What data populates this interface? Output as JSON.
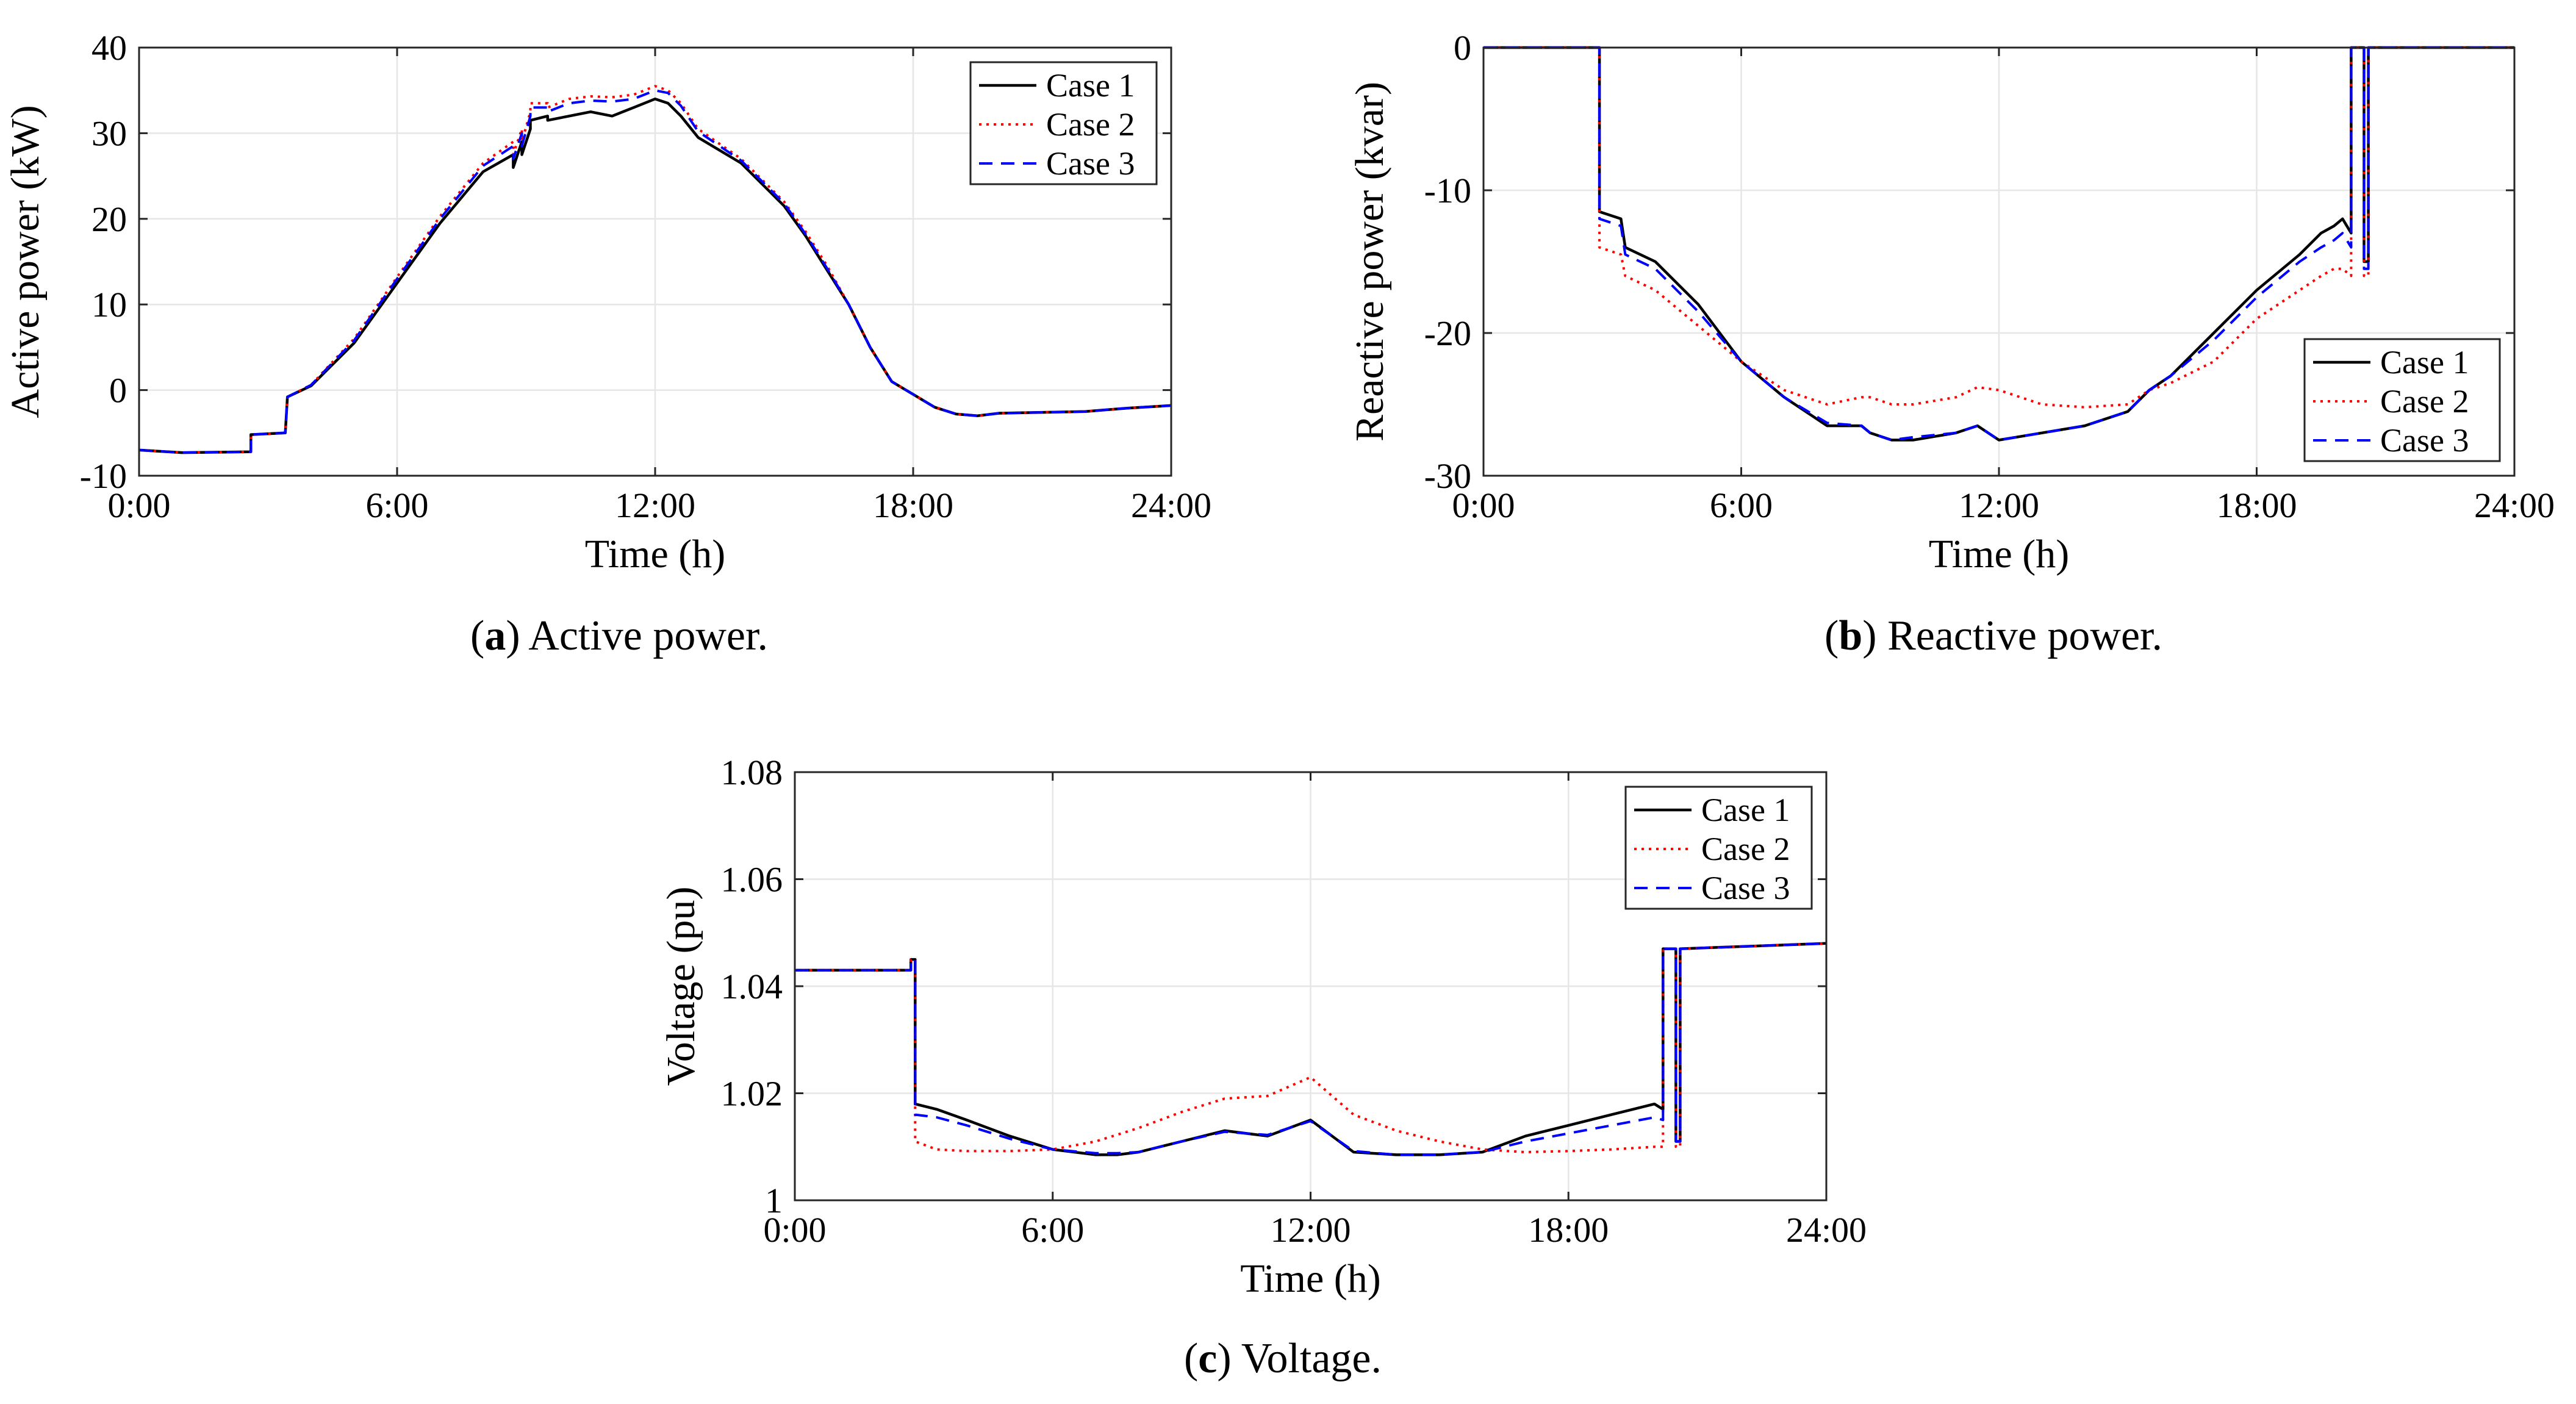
{
  "colors": {
    "case1": "#000000",
    "case2": "#ff0000",
    "case3": "#0000ff",
    "grid": "#e6e6e6",
    "axis": "#262626"
  },
  "chart_data": [
    {
      "id": "a",
      "type": "line",
      "caption_letter": "a",
      "caption_text": " Active power.",
      "xlabel": "Time (h)",
      "ylabel": "Active power (kW)",
      "xlim": [
        0,
        24
      ],
      "ylim": [
        -10,
        40
      ],
      "xticks": [
        0,
        6,
        12,
        18,
        24
      ],
      "xtick_labels": [
        "0:00",
        "6:00",
        "12:00",
        "18:00",
        "24:00"
      ],
      "yticks": [
        -10,
        0,
        10,
        20,
        30,
        40
      ],
      "ytick_labels": [
        "-10",
        "0",
        "10",
        "20",
        "30",
        "40"
      ],
      "legend": [
        "Case 1",
        "Case 2",
        "Case 3"
      ],
      "legend_position": "top-right",
      "grid": true,
      "series": [
        {
          "name": "Case 1",
          "x": [
            0,
            1,
            2.6,
            2.6,
            3.4,
            3.45,
            4,
            5,
            6,
            7,
            8,
            8.7,
            8.7,
            8.9,
            8.9,
            9.1,
            9.1,
            9.5,
            9.5,
            10,
            10.5,
            11,
            11.5,
            12,
            12.3,
            12.6,
            13,
            14,
            15,
            15.5,
            16,
            16.5,
            17,
            17.5,
            18,
            18.5,
            19,
            19.5,
            20,
            21,
            22,
            22.5,
            23,
            24
          ],
          "y": [
            -7,
            -7.3,
            -7.2,
            -5.2,
            -5,
            -0.8,
            0.5,
            5.5,
            12.5,
            19.5,
            25.5,
            27.5,
            26,
            29,
            27.5,
            30.5,
            31.5,
            32,
            31.5,
            32,
            32.5,
            32,
            33,
            34,
            33.5,
            32,
            29.5,
            26.5,
            21.5,
            18,
            14,
            10,
            5,
            1,
            -0.5,
            -2,
            -2.8,
            -3,
            -2.7,
            -2.6,
            -2.5,
            -2.3,
            -2.1,
            -1.8
          ]
        },
        {
          "name": "Case 2",
          "x": [
            0,
            1,
            2.6,
            2.6,
            3.4,
            3.45,
            4,
            5,
            6,
            7,
            8,
            8.7,
            8.7,
            8.9,
            8.9,
            9.1,
            9.1,
            9.5,
            9.5,
            10,
            10.5,
            11,
            11.5,
            12,
            12.3,
            12.6,
            13,
            14,
            15,
            15.5,
            16,
            16.5,
            17,
            17.5,
            18,
            18.5,
            19,
            19.5,
            20,
            21,
            22,
            22.5,
            23,
            24
          ],
          "y": [
            -7,
            -7.3,
            -7.2,
            -5.2,
            -5,
            -0.8,
            0.6,
            6,
            13.2,
            20.3,
            26.5,
            29,
            27.5,
            30.5,
            29,
            32.5,
            33.5,
            33.5,
            33,
            34,
            34.3,
            34.2,
            34.5,
            35.5,
            35,
            33.5,
            30.5,
            27,
            22,
            18.5,
            14.5,
            10,
            5,
            1,
            -0.5,
            -2,
            -2.8,
            -3,
            -2.7,
            -2.6,
            -2.5,
            -2.3,
            -2.1,
            -1.8
          ]
        },
        {
          "name": "Case 3",
          "x": [
            0,
            1,
            2.6,
            2.6,
            3.4,
            3.45,
            4,
            5,
            6,
            7,
            8,
            8.7,
            8.7,
            8.9,
            8.9,
            9.1,
            9.1,
            9.5,
            9.5,
            10,
            10.5,
            11,
            11.5,
            12,
            12.3,
            12.6,
            13,
            14,
            15,
            15.5,
            16,
            16.5,
            17,
            17.5,
            18,
            18.5,
            19,
            19.5,
            20,
            21,
            22,
            22.5,
            23,
            24
          ],
          "y": [
            -7,
            -7.3,
            -7.2,
            -5.2,
            -5,
            -0.8,
            0.6,
            5.8,
            13,
            20,
            26.2,
            28.5,
            27,
            30,
            28.5,
            32,
            33,
            33,
            32.5,
            33.5,
            33.8,
            33.7,
            34,
            35,
            34.7,
            33.2,
            30.2,
            26.8,
            21.8,
            18.2,
            14.2,
            10,
            5,
            1,
            -0.5,
            -2,
            -2.8,
            -3,
            -2.7,
            -2.6,
            -2.5,
            -2.3,
            -2.1,
            -1.8
          ]
        }
      ]
    },
    {
      "id": "b",
      "type": "line",
      "caption_letter": "b",
      "caption_text": " Reactive power.",
      "xlabel": "Time (h)",
      "ylabel": "Reactive power (kvar)",
      "xlim": [
        0,
        24
      ],
      "ylim": [
        -30,
        0
      ],
      "xticks": [
        0,
        6,
        12,
        18,
        24
      ],
      "xtick_labels": [
        "0:00",
        "6:00",
        "12:00",
        "18:00",
        "24:00"
      ],
      "yticks": [
        -30,
        -20,
        -10,
        0
      ],
      "ytick_labels": [
        "-30",
        "-20",
        "-10",
        "0"
      ],
      "legend": [
        "Case 1",
        "Case 2",
        "Case 3"
      ],
      "legend_position": "right",
      "grid": true,
      "series": [
        {
          "name": "Case 1",
          "x": [
            0,
            2.7,
            2.7,
            3.2,
            3.3,
            4,
            5,
            6,
            7,
            8,
            8.8,
            9,
            9.5,
            10,
            11,
            11.5,
            12,
            13,
            14,
            15,
            15.5,
            16,
            17,
            18,
            19,
            19.5,
            19.8,
            20,
            20.2,
            20.2,
            20.5,
            20.5,
            20.6,
            20.6,
            24
          ],
          "y": [
            0,
            0,
            -11.5,
            -12,
            -14,
            -15,
            -18,
            -22,
            -24.5,
            -26.5,
            -26.5,
            -27,
            -27.5,
            -27.5,
            -27,
            -26.5,
            -27.5,
            -27,
            -26.5,
            -25.5,
            -24,
            -23,
            -20,
            -17,
            -14.5,
            -13,
            -12.5,
            -12,
            -13,
            0,
            0,
            -15,
            -15,
            0,
            0
          ]
        },
        {
          "name": "Case 2",
          "x": [
            0,
            2.7,
            2.7,
            3.2,
            3.3,
            4,
            5,
            6,
            7,
            8,
            8.8,
            9,
            9.5,
            10,
            11,
            11.5,
            12,
            13,
            14,
            15,
            15.5,
            16,
            17,
            18,
            19,
            19.5,
            19.8,
            20,
            20.2,
            20.2,
            20.5,
            20.5,
            20.6,
            20.6,
            24
          ],
          "y": [
            0,
            0,
            -14,
            -14.5,
            -16,
            -17,
            -19.5,
            -22,
            -24,
            -25,
            -24.5,
            -24.5,
            -25,
            -25,
            -24.5,
            -23.8,
            -24,
            -25,
            -25.2,
            -25,
            -24,
            -23.5,
            -22,
            -19,
            -17,
            -16,
            -15.5,
            -15.5,
            -16,
            0,
            0,
            -16,
            -16,
            0,
            0
          ]
        },
        {
          "name": "Case 3",
          "x": [
            0,
            2.7,
            2.7,
            3.2,
            3.3,
            4,
            5,
            6,
            7,
            8,
            8.8,
            9,
            9.5,
            10,
            11,
            11.5,
            12,
            13,
            14,
            15,
            15.5,
            16,
            17,
            18,
            19,
            19.5,
            19.8,
            20,
            20.2,
            20.2,
            20.5,
            20.5,
            20.6,
            20.6,
            24
          ],
          "y": [
            0,
            0,
            -12,
            -12.5,
            -14.5,
            -15.5,
            -18.5,
            -22,
            -24.5,
            -26.3,
            -26.5,
            -27,
            -27.5,
            -27.3,
            -27,
            -26.5,
            -27.5,
            -27,
            -26.5,
            -25.5,
            -24,
            -23,
            -20.5,
            -17.5,
            -15,
            -14,
            -13.5,
            -13,
            -14,
            0,
            0,
            -15.5,
            -15.5,
            0,
            0
          ]
        }
      ]
    },
    {
      "id": "c",
      "type": "line",
      "caption_letter": "c",
      "caption_text": " Voltage.",
      "xlabel": "Time (h)",
      "ylabel": "Voltage (pu)",
      "xlim": [
        0,
        24
      ],
      "ylim": [
        1.0,
        1.08
      ],
      "xticks": [
        0,
        6,
        12,
        18,
        24
      ],
      "xtick_labels": [
        "0:00",
        "6:00",
        "12:00",
        "18:00",
        "24:00"
      ],
      "yticks": [
        1.0,
        1.02,
        1.04,
        1.06,
        1.08
      ],
      "ytick_labels": [
        "1",
        "1.02",
        "1.04",
        "1.06",
        "1.08"
      ],
      "legend": [
        "Case 1",
        "Case 2",
        "Case 3"
      ],
      "legend_position": "top-right",
      "grid": true,
      "series": [
        {
          "name": "Case 1",
          "x": [
            0,
            2.7,
            2.7,
            2.8,
            2.8,
            3.3,
            4,
            5,
            6,
            7,
            7.5,
            8,
            9,
            10,
            11,
            12,
            13,
            14,
            15,
            16,
            17,
            18,
            19,
            20,
            20.2,
            20.2,
            20.5,
            20.5,
            20.6,
            20.6,
            24
          ],
          "y": [
            1.043,
            1.043,
            1.045,
            1.045,
            1.018,
            1.017,
            1.015,
            1.012,
            1.0095,
            1.0085,
            1.0085,
            1.009,
            1.011,
            1.013,
            1.012,
            1.015,
            1.009,
            1.0085,
            1.0085,
            1.009,
            1.012,
            1.014,
            1.016,
            1.018,
            1.017,
            1.047,
            1.047,
            1.011,
            1.011,
            1.047,
            1.048
          ]
        },
        {
          "name": "Case 2",
          "x": [
            0,
            2.7,
            2.7,
            2.8,
            2.8,
            3.3,
            4,
            5,
            6,
            7,
            8,
            9,
            10,
            11,
            12,
            13,
            14,
            15,
            16,
            17,
            18,
            19,
            20,
            20.2,
            20.2,
            20.5,
            20.5,
            20.6,
            20.6,
            24
          ],
          "y": [
            1.043,
            1.043,
            1.045,
            1.045,
            1.011,
            1.0095,
            1.0092,
            1.0092,
            1.0095,
            1.011,
            1.0135,
            1.0165,
            1.019,
            1.0195,
            1.023,
            1.016,
            1.013,
            1.011,
            1.0095,
            1.009,
            1.0092,
            1.0095,
            1.01,
            1.01,
            1.047,
            1.047,
            1.01,
            1.01,
            1.047,
            1.048
          ]
        },
        {
          "name": "Case 3",
          "x": [
            0,
            2.7,
            2.7,
            2.8,
            2.8,
            3.3,
            4,
            5,
            6,
            7,
            7.5,
            8,
            9,
            10,
            11,
            12,
            13,
            14,
            15,
            16,
            17,
            18,
            19,
            20,
            20.2,
            20.2,
            20.5,
            20.5,
            20.6,
            20.6,
            24
          ],
          "y": [
            1.043,
            1.043,
            1.045,
            1.045,
            1.016,
            1.0155,
            1.014,
            1.0115,
            1.0095,
            1.0088,
            1.0088,
            1.009,
            1.011,
            1.0128,
            1.0122,
            1.0148,
            1.0092,
            1.0085,
            1.0085,
            1.009,
            1.011,
            1.0125,
            1.014,
            1.0155,
            1.015,
            1.047,
            1.047,
            1.011,
            1.011,
            1.047,
            1.048
          ]
        }
      ]
    }
  ]
}
